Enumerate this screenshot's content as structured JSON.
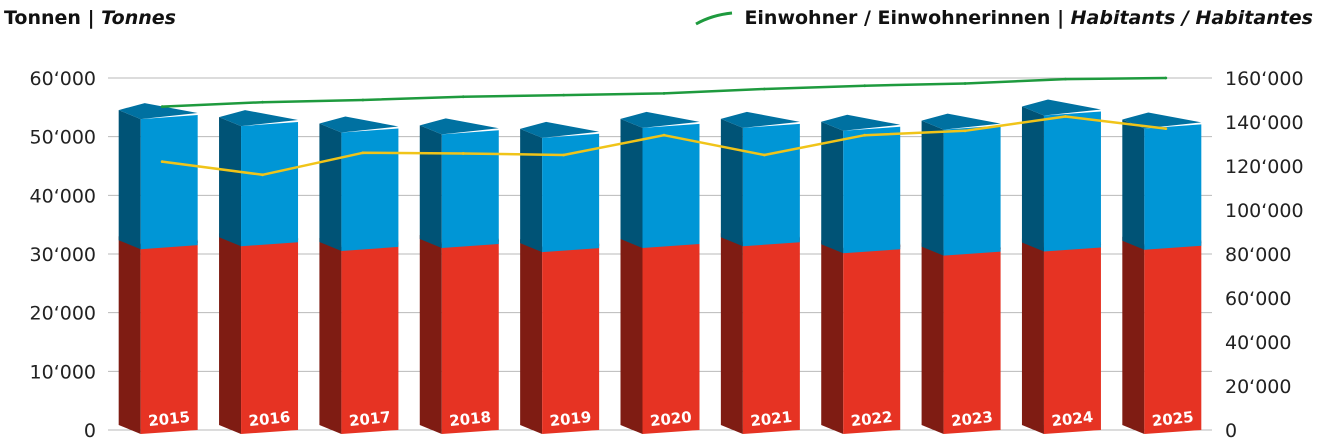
{
  "chart_data": {
    "type": "bar",
    "stacked": true,
    "categories": [
      "2015",
      "2016",
      "2017",
      "2018",
      "2019",
      "2020",
      "2021",
      "2022",
      "2023",
      "2024",
      "2025"
    ],
    "y_left": {
      "min": 0,
      "max": 60000,
      "ticks": [
        "0",
        "10‘000",
        "20‘000",
        "30‘000",
        "40‘000",
        "50‘000",
        "60‘000"
      ]
    },
    "y_right": {
      "min": 0,
      "max": 160000,
      "ticks": [
        "0",
        "20‘000",
        "40‘000",
        "60‘000",
        "80‘000",
        "100‘000",
        "120‘000",
        "140‘000",
        "160‘000"
      ]
    },
    "left_title": {
      "text": "Tonnen | ",
      "italic": "Tonnes"
    },
    "legend": {
      "text": "Einwohner / Einwohnerinnen | ",
      "italic": "Habitants / Habitantes",
      "color": "#1e9a3e"
    },
    "series": [
      {
        "axis": "left",
        "color": "#e63323",
        "values": [
          31500,
          32000,
          31200,
          31700,
          31000,
          31700,
          32000,
          30800,
          30400,
          31100,
          31400
        ]
      },
      {
        "axis": "left",
        "color": "#0096d6",
        "values": [
          21500,
          19800,
          19500,
          18700,
          18800,
          19800,
          19500,
          20200,
          20800,
          22500,
          20000
        ]
      },
      {
        "axis": "right",
        "kind": "line",
        "color": "#f0c419",
        "values": [
          122000,
          116000,
          126000,
          125700,
          125000,
          134000,
          125000,
          134000,
          136000,
          142500,
          137000
        ]
      },
      {
        "name": "Einwohner / Einwohnerinnen | Habitants / Habitantes",
        "axis": "right",
        "kind": "line",
        "color": "#1e9a3e",
        "values": [
          147000,
          149000,
          150000,
          151500,
          152200,
          153000,
          155000,
          156500,
          157500,
          159500,
          160000
        ]
      }
    ]
  }
}
